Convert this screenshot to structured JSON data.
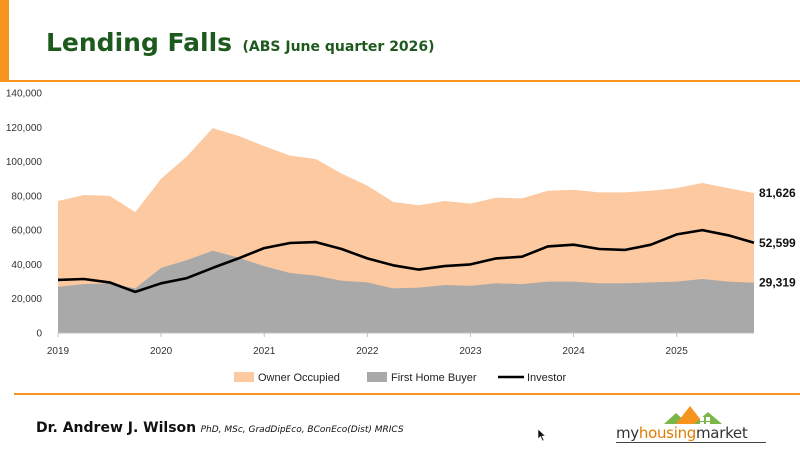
{
  "header": {
    "title": "Lending Falls",
    "subtitle": "(ABS June quarter 2026)"
  },
  "footer": {
    "author_name": "Dr. Andrew J. Wilson",
    "author_credentials": "PhD, MSc, GradDipEco, BConEco(Dist) MRICS",
    "logo_text_part1": "my",
    "logo_text_part2": "housing",
    "logo_text_part3": "market"
  },
  "colors": {
    "accent": "#f7941d",
    "title": "#1e5a1e",
    "owner_occupied": "#fcc9a0",
    "first_home_buyer": "#a9a9a9",
    "investor": "#000000"
  },
  "chart_data": {
    "type": "area",
    "x": [
      2019.0,
      2019.25,
      2019.5,
      2019.75,
      2020.0,
      2020.25,
      2020.5,
      2020.75,
      2021.0,
      2021.25,
      2021.5,
      2021.75,
      2022.0,
      2022.25,
      2022.5,
      2022.75,
      2023.0,
      2023.25,
      2023.5,
      2023.75,
      2024.0,
      2024.25,
      2024.5,
      2024.75,
      2025.0,
      2025.25,
      2025.5,
      2025.75
    ],
    "xticks": [
      "2019",
      "2020",
      "2021",
      "2022",
      "2023",
      "2024",
      "2025"
    ],
    "yticks": [
      "0",
      "20,000",
      "40,000",
      "60,000",
      "80,000",
      "100,000",
      "120,000",
      "140,000"
    ],
    "ylim": [
      0,
      140000
    ],
    "xlim": [
      2019,
      2025.75
    ],
    "series": [
      {
        "name": "Owner Occupied",
        "type": "area",
        "values": [
          77000,
          80500,
          80000,
          70500,
          90000,
          103000,
          119500,
          115000,
          109000,
          103500,
          101500,
          93000,
          86000,
          76500,
          74500,
          77000,
          75500,
          79000,
          78500,
          83000,
          83500,
          82000,
          82000,
          83000,
          84500,
          87500,
          84500,
          81626
        ]
      },
      {
        "name": "First Home Buyer",
        "type": "area",
        "values": [
          27000,
          28500,
          29000,
          26000,
          38000,
          42500,
          48000,
          44000,
          39000,
          35000,
          33500,
          30500,
          29500,
          26000,
          26500,
          28000,
          27500,
          29000,
          28500,
          30000,
          30000,
          29000,
          29000,
          29500,
          30000,
          31500,
          30000,
          29319
        ]
      },
      {
        "name": "Investor",
        "type": "line",
        "values": [
          31000,
          31500,
          29500,
          24000,
          29000,
          32000,
          38000,
          43500,
          49500,
          52500,
          53000,
          49000,
          43500,
          39500,
          37000,
          39000,
          40000,
          43500,
          44500,
          50500,
          51500,
          49000,
          48500,
          51500,
          57500,
          60000,
          57000,
          52599
        ]
      }
    ],
    "end_labels": [
      "81,626",
      "52,599",
      "29,319"
    ],
    "legend": {
      "position": "bottom",
      "entries": [
        "Owner Occupied",
        "First Home Buyer",
        "Investor"
      ]
    },
    "grid": false
  }
}
